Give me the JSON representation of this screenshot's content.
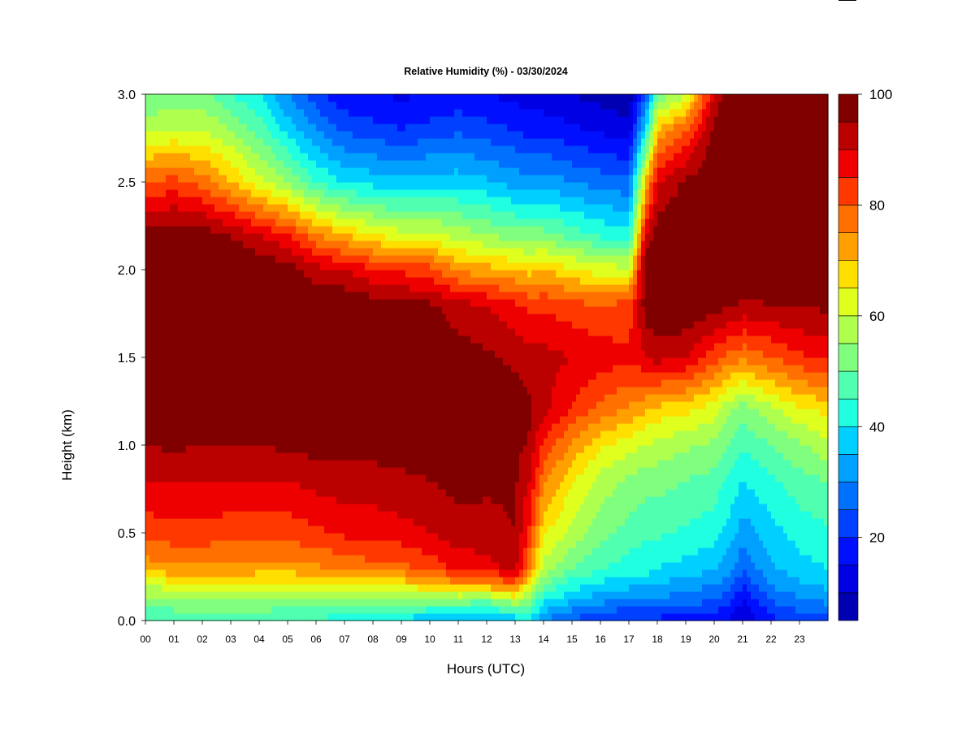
{
  "chart_data": {
    "type": "heatmap",
    "title": "Relative Humidity (%) - 03/30/2024",
    "xlabel": "Hours (UTC)",
    "ylabel": "Height (km)",
    "xlim": [
      0,
      24
    ],
    "ylim": [
      0.0,
      3.0
    ],
    "x_ticks": [
      "00",
      "01",
      "02",
      "03",
      "04",
      "05",
      "06",
      "07",
      "08",
      "09",
      "10",
      "11",
      "12",
      "13",
      "14",
      "15",
      "16",
      "17",
      "18",
      "19",
      "20",
      "21",
      "22",
      "23"
    ],
    "y_ticks": [
      "0.0",
      "0.5",
      "1.0",
      "1.5",
      "2.0",
      "2.5",
      "3.0"
    ],
    "y_tick_values": [
      0.0,
      0.5,
      1.0,
      1.5,
      2.0,
      2.5,
      3.0
    ],
    "colorbar": {
      "range": [
        5,
        100
      ],
      "levels": [
        5,
        10,
        15,
        20,
        25,
        30,
        35,
        40,
        45,
        50,
        55,
        60,
        65,
        70,
        75,
        80,
        85,
        90,
        95,
        100
      ],
      "colors": [
        "#00007F",
        "#0000B2",
        "#0000E5",
        "#0010FF",
        "#0040FF",
        "#0070FF",
        "#00A0FF",
        "#00D0FF",
        "#20FFDF",
        "#50FFAF",
        "#80FF7F",
        "#AFFF4F",
        "#DFFF1F",
        "#FFDF00",
        "#FFA000",
        "#FF7000",
        "#FF3800",
        "#EF0000",
        "#BB0000",
        "#800000"
      ],
      "tick_labels": [
        "20",
        "40",
        "60",
        "80",
        "100"
      ],
      "tick_values": [
        20,
        40,
        60,
        80,
        100
      ]
    },
    "hours": [
      0.0,
      1.0,
      2.0,
      3.0,
      4.0,
      5.0,
      6.0,
      7.0,
      8.0,
      9.0,
      10.0,
      11.0,
      12.0,
      13.0,
      13.5,
      14.0,
      15.0,
      16.0,
      17.0,
      17.6,
      18.0,
      19.0,
      20.0,
      20.5,
      21.0,
      22.0,
      23.0,
      23.9
    ],
    "heights_km": [
      0.0,
      0.1,
      0.2,
      0.3,
      0.5,
      0.8,
      1.0,
      1.2,
      1.5,
      1.8,
      2.0,
      2.2,
      2.5,
      2.8,
      3.0
    ],
    "rh_percent": [
      [
        45,
        52,
        60,
        72,
        82,
        90,
        95,
        99,
        100,
        100,
        100,
        98,
        80,
        58,
        50
      ],
      [
        45,
        53,
        62,
        74,
        83,
        90,
        96,
        99,
        100,
        100,
        100,
        99,
        82,
        60,
        52
      ],
      [
        45,
        54,
        63,
        74,
        83,
        90,
        95,
        99,
        100,
        100,
        100,
        98,
        78,
        60,
        52
      ],
      [
        45,
        54,
        63,
        74,
        82,
        90,
        95,
        99,
        100,
        100,
        100,
        95,
        70,
        55,
        45
      ],
      [
        44,
        54,
        62,
        73,
        82,
        90,
        95,
        99,
        100,
        100,
        100,
        90,
        62,
        48,
        40
      ],
      [
        44,
        53,
        62,
        73,
        82,
        90,
        96,
        99,
        100,
        100,
        98,
        85,
        55,
        38,
        30
      ],
      [
        44,
        52,
        62,
        74,
        84,
        92,
        97,
        99,
        100,
        100,
        92,
        76,
        45,
        30,
        22
      ],
      [
        42,
        52,
        64,
        76,
        86,
        93,
        97,
        99,
        100,
        100,
        90,
        70,
        40,
        24,
        16
      ],
      [
        40,
        52,
        66,
        78,
        87,
        93,
        97,
        99,
        100,
        98,
        86,
        65,
        38,
        22,
        15
      ],
      [
        38,
        52,
        66,
        78,
        88,
        94,
        97,
        99,
        100,
        96,
        84,
        62,
        36,
        20,
        14
      ],
      [
        36,
        50,
        68,
        82,
        90,
        95,
        98,
        99,
        100,
        96,
        82,
        62,
        38,
        22,
        15
      ],
      [
        32,
        50,
        72,
        86,
        93,
        97,
        99,
        100,
        98,
        92,
        74,
        58,
        38,
        24,
        16
      ],
      [
        34,
        48,
        72,
        88,
        93,
        96,
        97,
        99,
        96,
        90,
        72,
        55,
        36,
        22,
        15
      ],
      [
        36,
        55,
        78,
        92,
        95,
        96,
        97,
        98,
        94,
        86,
        70,
        52,
        33,
        20,
        13
      ],
      [
        38,
        50,
        62,
        76,
        84,
        90,
        94,
        96,
        92,
        84,
        68,
        52,
        32,
        18,
        12
      ],
      [
        30,
        40,
        50,
        58,
        66,
        76,
        84,
        92,
        92,
        84,
        70,
        52,
        33,
        18,
        12
      ],
      [
        24,
        34,
        42,
        50,
        58,
        66,
        74,
        84,
        90,
        82,
        66,
        48,
        30,
        16,
        10
      ],
      [
        20,
        30,
        38,
        46,
        52,
        58,
        66,
        78,
        88,
        80,
        62,
        44,
        28,
        14,
        8
      ],
      [
        18,
        28,
        36,
        42,
        48,
        54,
        62,
        74,
        86,
        82,
        62,
        42,
        26,
        12,
        6
      ],
      [
        18,
        28,
        36,
        42,
        46,
        52,
        60,
        70,
        90,
        98,
        100,
        90,
        70,
        40,
        25
      ],
      [
        18,
        28,
        34,
        40,
        46,
        52,
        58,
        68,
        92,
        100,
        100,
        98,
        90,
        70,
        50
      ],
      [
        18,
        26,
        32,
        38,
        44,
        50,
        56,
        66,
        90,
        100,
        100,
        100,
        96,
        80,
        60
      ],
      [
        16,
        24,
        30,
        36,
        42,
        48,
        54,
        62,
        82,
        98,
        100,
        100,
        100,
        96,
        90
      ],
      [
        14,
        20,
        26,
        32,
        38,
        44,
        50,
        56,
        78,
        96,
        100,
        100,
        100,
        100,
        100
      ],
      [
        10,
        14,
        20,
        26,
        32,
        40,
        46,
        52,
        76,
        94,
        100,
        100,
        100,
        100,
        100
      ],
      [
        18,
        24,
        30,
        34,
        38,
        44,
        50,
        58,
        80,
        95,
        100,
        100,
        100,
        100,
        100
      ],
      [
        22,
        28,
        34,
        38,
        42,
        48,
        54,
        64,
        84,
        96,
        100,
        100,
        100,
        100,
        100
      ],
      [
        22,
        30,
        36,
        40,
        44,
        50,
        58,
        66,
        86,
        96,
        100,
        100,
        100,
        100,
        100
      ]
    ]
  }
}
